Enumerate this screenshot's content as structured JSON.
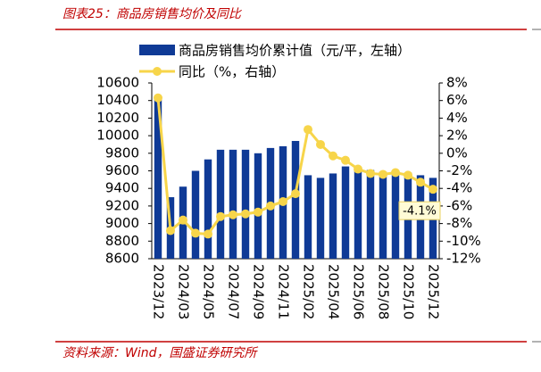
{
  "chart_data": {
    "type": "bar_line",
    "title": "图表25：商品房销售均价及同比",
    "source": "资料来源：Wind，国盛证券研究所",
    "categories": [
      "2023/12",
      null,
      "2024/03",
      null,
      "2024/05",
      null,
      "2024/07",
      null,
      "2024/09",
      null,
      "2024/11",
      null,
      "2025/02",
      null,
      "2025/04",
      null,
      "2025/06",
      null,
      "2025/08",
      null,
      "2025/10",
      null,
      "2025/12"
    ],
    "series": [
      {
        "name": "商品房销售均价累计值（元/平，左轴）",
        "color": "#0f3a96",
        "type": "bar",
        "values": [
          10420,
          9300,
          9420,
          9600,
          9730,
          9840,
          9840,
          9840,
          9800,
          9860,
          9880,
          9940,
          9550,
          9520,
          9570,
          9650,
          9620,
          9610,
          9590,
          9590,
          9580,
          9550,
          9520
        ]
      },
      {
        "name": "同比（%，右轴）",
        "color": "#f7d54a",
        "type": "line",
        "axis": "y2",
        "values": [
          6.3,
          -8.8,
          -7.6,
          -9.1,
          -9.2,
          -7.2,
          -7.0,
          -6.9,
          -6.7,
          -6.0,
          -5.5,
          -4.6,
          2.7,
          1.0,
          -0.3,
          -0.8,
          -1.8,
          -2.3,
          -2.4,
          -2.2,
          -2.5,
          -3.3,
          -4.1
        ],
        "value_labels": [
          null,
          null,
          null,
          null,
          null,
          null,
          null,
          null,
          null,
          null,
          null,
          null,
          null,
          null,
          null,
          null,
          null,
          null,
          null,
          null,
          null,
          null,
          "-4.1%"
        ]
      }
    ],
    "ylim": [
      8600,
      10600
    ],
    "yticks": [
      8600,
      8800,
      9000,
      9200,
      9400,
      9600,
      9800,
      10000,
      10200,
      10400,
      10600
    ],
    "y2lim": [
      -12,
      8
    ],
    "y2ticks": [
      {
        "value": -12,
        "label": "-12%"
      },
      {
        "value": -10,
        "label": "-10%"
      },
      {
        "value": -8,
        "label": "-8%"
      },
      {
        "value": -6,
        "label": "-6%"
      },
      {
        "value": -4,
        "label": "-4%"
      },
      {
        "value": -2,
        "label": "-2%"
      },
      {
        "value": 0,
        "label": "0%"
      },
      {
        "value": 2,
        "label": "2%"
      },
      {
        "value": 4,
        "label": "4%"
      },
      {
        "value": 6,
        "label": "6%"
      },
      {
        "value": 8,
        "label": "8%"
      }
    ]
  }
}
